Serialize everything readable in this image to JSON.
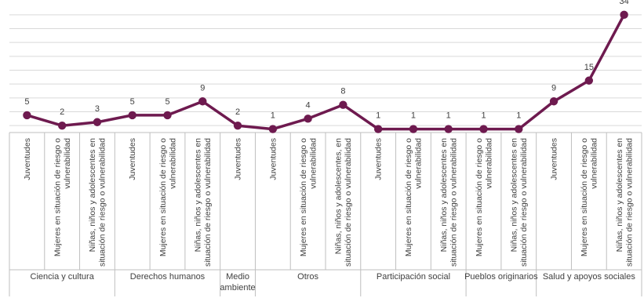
{
  "chart_data": {
    "type": "line",
    "title": "",
    "xlabel": "",
    "ylabel": "",
    "ylim": [
      0,
      36
    ],
    "grid": true,
    "legend": "none",
    "color": "#6e1a4f",
    "categories": [
      {
        "group": 0,
        "label": [
          "Juventudes"
        ]
      },
      {
        "group": 0,
        "label": [
          "Mujeres en situación de riesgo o",
          "vulnerabilidad"
        ]
      },
      {
        "group": 0,
        "label": [
          "Niñas, niños y adolescentes en",
          "situación de riesgo o vulnerabilidad"
        ]
      },
      {
        "group": 1,
        "label": [
          "Juventudes"
        ]
      },
      {
        "group": 1,
        "label": [
          "Mujeres en situación de riesgo o",
          "vulnerabilidad"
        ]
      },
      {
        "group": 1,
        "label": [
          "Niñas, niños y adolescentes en",
          "situación de riesgo o vulnerabilidad"
        ]
      },
      {
        "group": 2,
        "label": [
          "Juventudes"
        ]
      },
      {
        "group": 3,
        "label": [
          "Juventudes"
        ]
      },
      {
        "group": 3,
        "label": [
          "Mujeres en situación de riesgo o",
          "vulnerabilidad"
        ]
      },
      {
        "group": 3,
        "label": [
          "Niñas, niños y adolescentes, en",
          "situación de riesgo o vulnerabilidad"
        ]
      },
      {
        "group": 4,
        "label": [
          "Juventudes"
        ]
      },
      {
        "group": 4,
        "label": [
          "Mujeres en situación de riesgo o",
          "vulnerabilidad"
        ]
      },
      {
        "group": 4,
        "label": [
          "Niñas, niños y adolescentes en",
          "situación de riesgo o vulnerabilidad"
        ]
      },
      {
        "group": 5,
        "label": [
          "Mujeres en situación de riesgo o",
          "vulnerabilidad"
        ]
      },
      {
        "group": 5,
        "label": [
          "Niñas, niños y adolescentes en",
          "situación de riesgo o vulnerabilidad"
        ]
      },
      {
        "group": 6,
        "label": [
          "Juventudes"
        ]
      },
      {
        "group": 6,
        "label": [
          "Mujeres en situación de riesgo o",
          "vulnerabilidad"
        ]
      },
      {
        "group": 6,
        "label": [
          "Niñas, niños y adolescentes en",
          "situación de riesgo o vulnerabilidad"
        ]
      }
    ],
    "groups": [
      {
        "label": [
          "Ciencia y cultura"
        ]
      },
      {
        "label": [
          "Derechos humanos"
        ]
      },
      {
        "label": [
          "Medio",
          "ambiente"
        ]
      },
      {
        "label": [
          "Otros"
        ]
      },
      {
        "label": [
          "Participación social"
        ]
      },
      {
        "label": [
          "Pueblos originarios"
        ]
      },
      {
        "label": [
          "Salud y apoyos sociales"
        ]
      }
    ],
    "series": [
      {
        "values": [
          5,
          2,
          3,
          5,
          5,
          9,
          2,
          1,
          4,
          8,
          1,
          1,
          1,
          1,
          1,
          9,
          15,
          34
        ]
      }
    ]
  }
}
